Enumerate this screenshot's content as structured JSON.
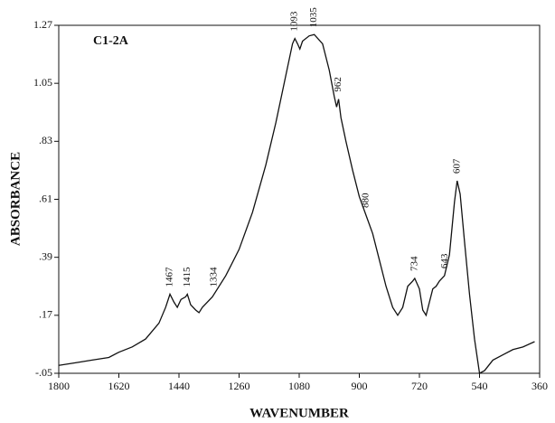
{
  "chart_data": {
    "type": "line",
    "title": "C1-2A",
    "x_label": "WAVENUMBER",
    "y_label": "ABSORBANCE",
    "xlim": [
      1800,
      360
    ],
    "ylim": [
      -0.05,
      1.27
    ],
    "xticks": [
      1800,
      1620,
      1440,
      1260,
      1080,
      900,
      720,
      540,
      360
    ],
    "yticks": [
      {
        "value": -0.05,
        "label": "-.05"
      },
      {
        "value": 0.17,
        "label": ".17"
      },
      {
        "value": 0.39,
        "label": ".39"
      },
      {
        "value": 0.61,
        "label": ".61"
      },
      {
        "value": 0.83,
        "label": ".83"
      },
      1.05,
      1.27
    ],
    "series": [
      {
        "color": "#111111",
        "x": [
          1800,
          1750,
          1700,
          1650,
          1620,
          1580,
          1540,
          1500,
          1480,
          1467,
          1455,
          1445,
          1434,
          1420,
          1415,
          1405,
          1390,
          1380,
          1370,
          1340,
          1300,
          1260,
          1220,
          1180,
          1150,
          1120,
          1100,
          1093,
          1085,
          1078,
          1070,
          1050,
          1035,
          1010,
          990,
          975,
          968,
          962,
          955,
          940,
          920,
          900,
          880,
          860,
          840,
          820,
          800,
          785,
          770,
          755,
          740,
          734,
          720,
          710,
          700,
          690,
          680,
          670,
          660,
          645,
          630,
          615,
          607,
          598,
          585,
          570,
          555,
          540,
          525,
          500,
          470,
          440,
          410,
          375
        ],
        "values": [
          -0.02,
          -0.01,
          0.0,
          0.01,
          0.03,
          0.05,
          0.08,
          0.14,
          0.2,
          0.25,
          0.22,
          0.2,
          0.23,
          0.24,
          0.25,
          0.21,
          0.19,
          0.18,
          0.2,
          0.24,
          0.32,
          0.42,
          0.56,
          0.74,
          0.9,
          1.08,
          1.2,
          1.22,
          1.2,
          1.18,
          1.21,
          1.23,
          1.235,
          1.2,
          1.1,
          1.0,
          0.96,
          0.99,
          0.92,
          0.83,
          0.72,
          0.62,
          0.55,
          0.48,
          0.38,
          0.28,
          0.2,
          0.17,
          0.2,
          0.28,
          0.3,
          0.31,
          0.27,
          0.19,
          0.17,
          0.22,
          0.27,
          0.28,
          0.3,
          0.32,
          0.4,
          0.6,
          0.68,
          0.63,
          0.45,
          0.25,
          0.08,
          -0.05,
          -0.04,
          0.0,
          0.02,
          0.04,
          0.05,
          0.07
        ]
      }
    ],
    "peak_labels": [
      {
        "x": 1093,
        "y": 1.22,
        "label": "1093"
      },
      {
        "x": 1035,
        "y": 1.235,
        "label": "1035"
      },
      {
        "x": 962,
        "y": 0.99,
        "label": "962"
      },
      {
        "x": 880,
        "y": 0.55,
        "label": "880"
      },
      {
        "x": 734,
        "y": 0.31,
        "label": "734"
      },
      {
        "x": 643,
        "y": 0.32,
        "label": "643"
      },
      {
        "x": 607,
        "y": 0.68,
        "label": "607"
      },
      {
        "x": 1467,
        "y": 0.25,
        "label": "1467"
      },
      {
        "x": 1334,
        "y": 0.25,
        "label": "1334"
      },
      {
        "x": 1415,
        "y": 0.25,
        "label": "1415"
      }
    ]
  }
}
